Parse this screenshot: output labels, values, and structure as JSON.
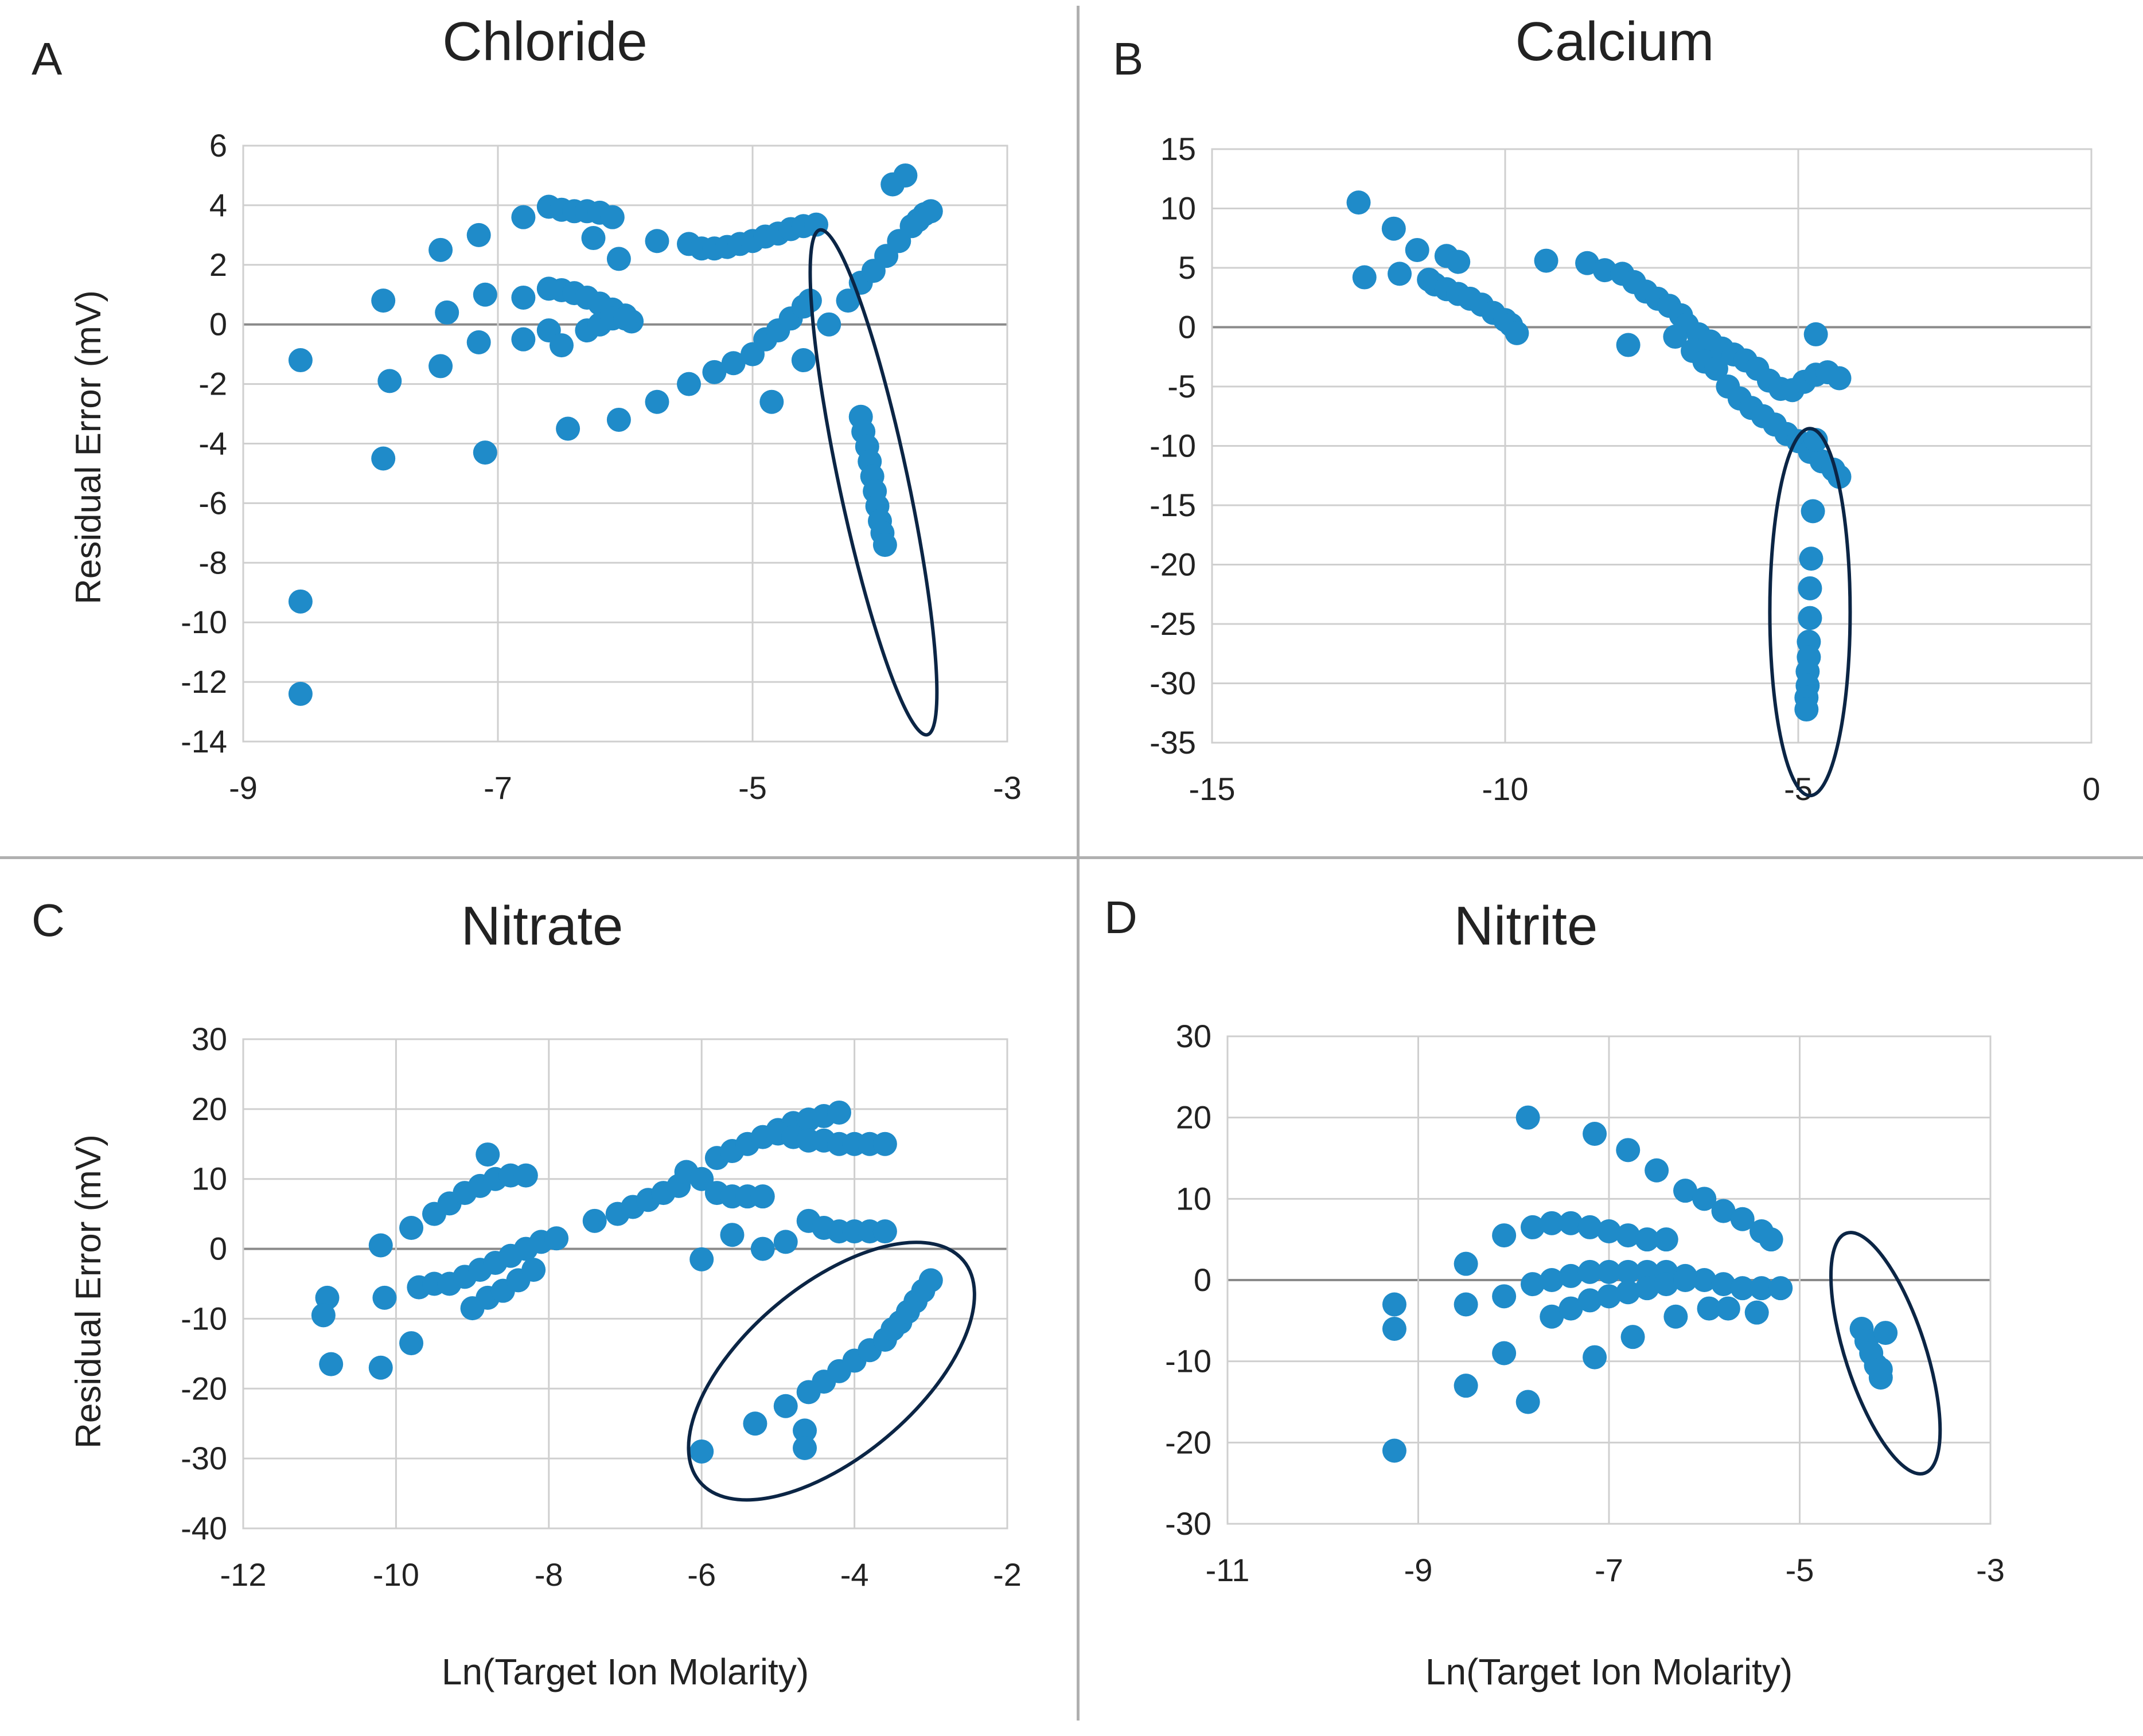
{
  "figure": {
    "divider_color": "#b0b0b0",
    "point_color": "#1f8bc9",
    "ellipse_color": "#0b2545",
    "grid_color": "#cfcfcf",
    "axis_color": "#8a8a8a"
  },
  "chart_data": [
    {
      "panel": "A",
      "type": "scatter",
      "title": "Chloride",
      "xlabel": "",
      "ylabel": "Residual Error (mV)",
      "xlim": [
        -9,
        -3
      ],
      "ylim": [
        -14,
        6
      ],
      "xticks": [
        -9,
        -7,
        -5,
        -3
      ],
      "yticks": [
        6,
        4,
        2,
        0,
        -2,
        -4,
        -6,
        -8,
        -10,
        -12,
        -14
      ],
      "grid": true,
      "points": [
        [
          -8.55,
          -1.2
        ],
        [
          -8.55,
          -9.3
        ],
        [
          -8.55,
          -12.4
        ],
        [
          -7.9,
          0.8
        ],
        [
          -7.85,
          -1.9
        ],
        [
          -7.9,
          -4.5
        ],
        [
          -7.45,
          2.5
        ],
        [
          -7.4,
          0.4
        ],
        [
          -7.45,
          -1.4
        ],
        [
          -7.15,
          3.0
        ],
        [
          -7.1,
          1.0
        ],
        [
          -7.15,
          -0.6
        ],
        [
          -7.1,
          -4.3
        ],
        [
          -6.8,
          3.6
        ],
        [
          -6.8,
          0.9
        ],
        [
          -6.8,
          -0.5
        ],
        [
          -6.6,
          3.95
        ],
        [
          -6.5,
          3.85
        ],
        [
          -6.4,
          3.8
        ],
        [
          -6.3,
          3.8
        ],
        [
          -6.2,
          3.75
        ],
        [
          -6.1,
          3.6
        ],
        [
          -6.6,
          1.2
        ],
        [
          -6.5,
          1.15
        ],
        [
          -6.4,
          1.05
        ],
        [
          -6.3,
          0.9
        ],
        [
          -6.2,
          0.7
        ],
        [
          -6.1,
          0.5
        ],
        [
          -6.0,
          0.3
        ],
        [
          -5.95,
          0.1
        ],
        [
          -6.6,
          -0.2
        ],
        [
          -6.5,
          -0.7
        ],
        [
          -6.3,
          -0.2
        ],
        [
          -6.2,
          0.0
        ],
        [
          -6.1,
          0.2
        ],
        [
          -6.0,
          0.2
        ],
        [
          -6.25,
          2.9
        ],
        [
          -6.05,
          2.2
        ],
        [
          -5.75,
          2.8
        ],
        [
          -5.5,
          2.7
        ],
        [
          -5.4,
          2.55
        ],
        [
          -5.3,
          2.55
        ],
        [
          -5.2,
          2.6
        ],
        [
          -5.1,
          2.7
        ],
        [
          -5.0,
          2.8
        ],
        [
          -4.9,
          2.95
        ],
        [
          -4.8,
          3.05
        ],
        [
          -4.7,
          3.2
        ],
        [
          -4.6,
          3.3
        ],
        [
          -4.5,
          3.35
        ],
        [
          -6.45,
          -3.5
        ],
        [
          -6.05,
          -3.2
        ],
        [
          -5.75,
          -2.6
        ],
        [
          -5.5,
          -2.0
        ],
        [
          -5.3,
          -1.6
        ],
        [
          -5.15,
          -1.3
        ],
        [
          -5.0,
          -1.0
        ],
        [
          -4.9,
          -0.5
        ],
        [
          -4.8,
          -0.2
        ],
        [
          -4.7,
          0.2
        ],
        [
          -4.6,
          0.6
        ],
        [
          -4.55,
          0.8
        ],
        [
          -4.85,
          -2.6
        ],
        [
          -4.6,
          -1.2
        ],
        [
          -4.4,
          0.0
        ],
        [
          -4.25,
          0.8
        ],
        [
          -4.15,
          1.4
        ],
        [
          -4.05,
          1.8
        ],
        [
          -3.95,
          2.3
        ],
        [
          -3.85,
          2.8
        ],
        [
          -3.9,
          4.7
        ],
        [
          -3.8,
          5.0
        ],
        [
          -3.75,
          3.3
        ],
        [
          -3.7,
          3.5
        ],
        [
          -3.65,
          3.7
        ],
        [
          -3.6,
          3.8
        ],
        [
          -4.15,
          -3.1
        ],
        [
          -4.13,
          -3.6
        ],
        [
          -4.1,
          -4.1
        ],
        [
          -4.08,
          -4.6
        ],
        [
          -4.06,
          -5.1
        ],
        [
          -4.04,
          -5.6
        ],
        [
          -4.02,
          -6.1
        ],
        [
          -4.0,
          -6.6
        ],
        [
          -3.98,
          -7.0
        ],
        [
          -3.96,
          -7.4
        ]
      ],
      "ellipse": {
        "cx": -4.05,
        "cy": -5.3,
        "label": "highlighted outlier cluster"
      }
    },
    {
      "panel": "B",
      "type": "scatter",
      "title": "Calcium",
      "xlabel": "",
      "ylabel": "",
      "xlim": [
        -15,
        0
      ],
      "ylim": [
        -35,
        15
      ],
      "xticks": [
        -15,
        -10,
        -5,
        0
      ],
      "yticks": [
        15,
        10,
        5,
        0,
        -5,
        -10,
        -15,
        -20,
        -25,
        -30,
        -35
      ],
      "grid": true,
      "points": [
        [
          -12.5,
          10.5
        ],
        [
          -12.4,
          4.2
        ],
        [
          -11.9,
          8.3
        ],
        [
          -11.8,
          4.5
        ],
        [
          -11.5,
          6.5
        ],
        [
          -11.3,
          4.0
        ],
        [
          -11.0,
          6.0
        ],
        [
          -10.8,
          5.5
        ],
        [
          -11.2,
          3.6
        ],
        [
          -11.0,
          3.2
        ],
        [
          -10.8,
          2.8
        ],
        [
          -10.6,
          2.4
        ],
        [
          -10.4,
          1.9
        ],
        [
          -10.2,
          1.2
        ],
        [
          -10.0,
          0.6
        ],
        [
          -9.9,
          0.2
        ],
        [
          -9.8,
          -0.5
        ],
        [
          -9.3,
          5.6
        ],
        [
          -8.6,
          5.4
        ],
        [
          -8.3,
          4.8
        ],
        [
          -8.0,
          4.5
        ],
        [
          -7.8,
          3.8
        ],
        [
          -7.6,
          3.0
        ],
        [
          -7.4,
          2.4
        ],
        [
          -7.2,
          1.8
        ],
        [
          -7.0,
          1.0
        ],
        [
          -6.9,
          0.2
        ],
        [
          -6.7,
          -0.6
        ],
        [
          -6.5,
          -1.2
        ],
        [
          -6.3,
          -1.8
        ],
        [
          -6.1,
          -2.3
        ],
        [
          -5.9,
          -2.8
        ],
        [
          -5.7,
          -3.5
        ],
        [
          -5.5,
          -4.5
        ],
        [
          -5.3,
          -5.2
        ],
        [
          -5.1,
          -5.3
        ],
        [
          -4.9,
          -4.6
        ],
        [
          -4.7,
          -4.0
        ],
        [
          -4.5,
          -3.8
        ],
        [
          -4.3,
          -4.3
        ],
        [
          -7.9,
          -1.5
        ],
        [
          -7.1,
          -0.8
        ],
        [
          -6.8,
          -2.0
        ],
        [
          -6.6,
          -2.9
        ],
        [
          -6.4,
          -3.5
        ],
        [
          -6.2,
          -5.0
        ],
        [
          -6.0,
          -6.0
        ],
        [
          -5.8,
          -6.8
        ],
        [
          -5.6,
          -7.5
        ],
        [
          -5.4,
          -8.2
        ],
        [
          -5.2,
          -9.0
        ],
        [
          -5.0,
          -9.6
        ],
        [
          -4.8,
          -10.5
        ],
        [
          -4.6,
          -11.3
        ],
        [
          -4.4,
          -12.0
        ],
        [
          -4.3,
          -12.6
        ],
        [
          -4.7,
          -0.6
        ],
        [
          -4.7,
          -9.5
        ],
        [
          -4.75,
          -15.5
        ],
        [
          -4.78,
          -19.5
        ],
        [
          -4.8,
          -22.0
        ],
        [
          -4.8,
          -24.5
        ],
        [
          -4.82,
          -26.5
        ],
        [
          -4.82,
          -27.8
        ],
        [
          -4.84,
          -29.0
        ],
        [
          -4.84,
          -30.2
        ],
        [
          -4.86,
          -31.2
        ],
        [
          -4.86,
          -32.2
        ]
      ],
      "ellipse": {
        "cx": -4.8,
        "cy": -24.0,
        "label": "highlighted outlier cluster"
      }
    },
    {
      "panel": "C",
      "type": "scatter",
      "title": "Nitrate",
      "xlabel": "Ln(Target Ion Molarity)",
      "ylabel": "Residual Error (mV)",
      "xlim": [
        -12,
        -2
      ],
      "ylim": [
        -40,
        30
      ],
      "xticks": [
        -12,
        -10,
        -8,
        -6,
        -4,
        -2
      ],
      "yticks": [
        30,
        20,
        10,
        0,
        -10,
        -20,
        -30,
        -40
      ],
      "grid": true,
      "points": [
        [
          -10.9,
          -7
        ],
        [
          -10.95,
          -9.5
        ],
        [
          -10.85,
          -16.5
        ],
        [
          -10.2,
          0.5
        ],
        [
          -10.15,
          -7
        ],
        [
          -10.2,
          -17
        ],
        [
          -9.8,
          3
        ],
        [
          -9.8,
          -13.5
        ],
        [
          -9.5,
          5
        ],
        [
          -9.3,
          6.5
        ],
        [
          -9.1,
          8
        ],
        [
          -8.9,
          9
        ],
        [
          -8.7,
          10
        ],
        [
          -8.5,
          10.5
        ],
        [
          -8.3,
          10.5
        ],
        [
          -8.8,
          13.5
        ],
        [
          -9.7,
          -5.5
        ],
        [
          -9.5,
          -5
        ],
        [
          -9.3,
          -5
        ],
        [
          -9.1,
          -4
        ],
        [
          -8.9,
          -3
        ],
        [
          -8.7,
          -2
        ],
        [
          -8.5,
          -1
        ],
        [
          -8.3,
          0
        ],
        [
          -8.1,
          1
        ],
        [
          -7.9,
          1.5
        ],
        [
          -9.0,
          -8.5
        ],
        [
          -8.8,
          -7
        ],
        [
          -8.6,
          -6
        ],
        [
          -8.4,
          -4.5
        ],
        [
          -8.2,
          -3
        ],
        [
          -7.4,
          4
        ],
        [
          -7.1,
          5
        ],
        [
          -6.9,
          6
        ],
        [
          -6.7,
          7
        ],
        [
          -6.5,
          8
        ],
        [
          -6.3,
          9
        ],
        [
          -6.2,
          11
        ],
        [
          -6.0,
          10
        ],
        [
          -5.8,
          8
        ],
        [
          -5.6,
          7.5
        ],
        [
          -5.4,
          7.5
        ],
        [
          -5.2,
          7.5
        ],
        [
          -5.8,
          13
        ],
        [
          -5.6,
          14
        ],
        [
          -5.4,
          15
        ],
        [
          -5.2,
          16
        ],
        [
          -5.0,
          17
        ],
        [
          -4.8,
          18
        ],
        [
          -4.6,
          18.5
        ],
        [
          -4.4,
          19
        ],
        [
          -4.2,
          19.5
        ],
        [
          -5.0,
          16.5
        ],
        [
          -4.8,
          16
        ],
        [
          -4.6,
          15.5
        ],
        [
          -4.4,
          15.5
        ],
        [
          -4.2,
          15
        ],
        [
          -4.0,
          15
        ],
        [
          -3.8,
          15
        ],
        [
          -3.6,
          15
        ],
        [
          -6.0,
          -1.5
        ],
        [
          -5.6,
          2
        ],
        [
          -5.2,
          0
        ],
        [
          -4.9,
          1
        ],
        [
          -4.6,
          4
        ],
        [
          -4.4,
          3
        ],
        [
          -4.2,
          2.5
        ],
        [
          -4.0,
          2.5
        ],
        [
          -3.8,
          2.5
        ],
        [
          -3.6,
          2.5
        ],
        [
          -6.0,
          -29
        ],
        [
          -5.3,
          -25
        ],
        [
          -4.9,
          -22.5
        ],
        [
          -4.65,
          -26
        ],
        [
          -4.65,
          -28.5
        ],
        [
          -4.6,
          -20.5
        ],
        [
          -4.4,
          -19
        ],
        [
          -4.2,
          -17.5
        ],
        [
          -4.0,
          -16
        ],
        [
          -3.8,
          -14.5
        ],
        [
          -3.6,
          -13
        ],
        [
          -3.5,
          -11.5
        ],
        [
          -3.4,
          -10.5
        ],
        [
          -3.3,
          -9
        ],
        [
          -3.2,
          -7.5
        ],
        [
          -3.1,
          -6
        ],
        [
          -3.0,
          -4.5
        ]
      ],
      "ellipse": {
        "cx": -4.3,
        "cy": -17.5,
        "label": "highlighted outlier cluster"
      }
    },
    {
      "panel": "D",
      "type": "scatter",
      "title": "Nitrite",
      "xlabel": "Ln(Target Ion Molarity)",
      "ylabel": "",
      "xlim": [
        -11,
        -3
      ],
      "ylim": [
        -30,
        30
      ],
      "xticks": [
        -11,
        -9,
        -7,
        -5,
        -3
      ],
      "yticks": [
        30,
        20,
        10,
        0,
        -10,
        -20,
        -30
      ],
      "grid": true,
      "points": [
        [
          -9.25,
          -3
        ],
        [
          -9.25,
          -6
        ],
        [
          -9.25,
          -21
        ],
        [
          -8.5,
          2
        ],
        [
          -8.5,
          -3
        ],
        [
          -8.5,
          -13
        ],
        [
          -8.1,
          5.5
        ],
        [
          -8.1,
          -2
        ],
        [
          -8.1,
          -9
        ],
        [
          -7.85,
          20
        ],
        [
          -7.85,
          -15
        ],
        [
          -7.8,
          6.5
        ],
        [
          -7.6,
          7
        ],
        [
          -7.4,
          7
        ],
        [
          -7.2,
          6.5
        ],
        [
          -7.0,
          6
        ],
        [
          -6.8,
          5.5
        ],
        [
          -6.6,
          5
        ],
        [
          -6.4,
          5
        ],
        [
          -7.15,
          18
        ],
        [
          -6.8,
          16
        ],
        [
          -6.5,
          13.5
        ],
        [
          -6.2,
          11
        ],
        [
          -6.0,
          10
        ],
        [
          -5.8,
          8.5
        ],
        [
          -5.6,
          7.5
        ],
        [
          -5.4,
          6
        ],
        [
          -5.3,
          5
        ],
        [
          -7.8,
          -0.5
        ],
        [
          -7.6,
          0
        ],
        [
          -7.4,
          0.5
        ],
        [
          -7.2,
          1
        ],
        [
          -7.0,
          1
        ],
        [
          -6.8,
          1
        ],
        [
          -6.6,
          1
        ],
        [
          -6.4,
          1
        ],
        [
          -6.2,
          0.5
        ],
        [
          -6.0,
          0
        ],
        [
          -5.8,
          -0.5
        ],
        [
          -5.6,
          -1
        ],
        [
          -5.4,
          -1
        ],
        [
          -5.2,
          -1
        ],
        [
          -7.6,
          -4.5
        ],
        [
          -7.4,
          -3.5
        ],
        [
          -7.2,
          -2.5
        ],
        [
          -7.0,
          -2
        ],
        [
          -6.8,
          -1.5
        ],
        [
          -6.6,
          -1
        ],
        [
          -6.4,
          -0.5
        ],
        [
          -6.2,
          0
        ],
        [
          -7.15,
          -9.5
        ],
        [
          -6.75,
          -7
        ],
        [
          -6.3,
          -4.5
        ],
        [
          -5.95,
          -3.5
        ],
        [
          -5.75,
          -3.5
        ],
        [
          -5.45,
          -4
        ],
        [
          -4.35,
          -6
        ],
        [
          -4.3,
          -7.5
        ],
        [
          -4.25,
          -9
        ],
        [
          -4.2,
          -10.5
        ],
        [
          -4.15,
          -12
        ],
        [
          -4.1,
          -6.5
        ],
        [
          -4.15,
          -11
        ]
      ],
      "ellipse": {
        "cx": -4.1,
        "cy": -9.0,
        "label": "highlighted outlier cluster"
      }
    }
  ]
}
